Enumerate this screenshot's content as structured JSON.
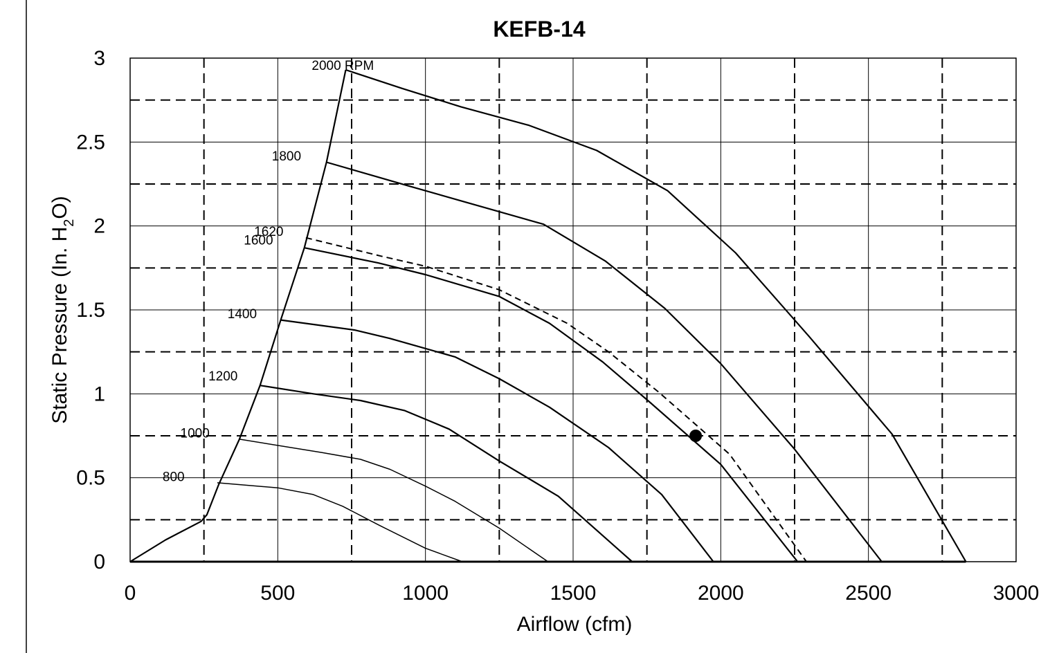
{
  "chart_data": {
    "type": "line",
    "title": "KEFB-14",
    "xlabel": "Airflow (cfm)",
    "ylabel_main": "Static Pressure (In. H",
    "ylabel_sub": "2",
    "ylabel_end": "O)",
    "xlim": [
      0,
      3000
    ],
    "ylim": [
      0,
      3
    ],
    "xticks": [
      0,
      500,
      1000,
      1500,
      2000,
      2500,
      3000
    ],
    "yticks": [
      0,
      0.5,
      1,
      1.5,
      2,
      2.5,
      3
    ],
    "xtick_labels": [
      "0",
      "500",
      "1000",
      "1500",
      "2000",
      "2500",
      "3000"
    ],
    "ytick_labels": [
      "0",
      "0.5",
      "1",
      "1.5",
      "2",
      "2.5",
      "3"
    ],
    "grid": {
      "solid_x": [
        500,
        1000,
        1500,
        2000,
        2500
      ],
      "dashed_x": [
        250,
        750,
        1250,
        1750,
        2250,
        2750
      ],
      "solid_y": [
        0.5,
        1,
        1.5,
        2,
        2.5
      ],
      "dashed_y": [
        0.25,
        0.75,
        1.25,
        1.75,
        2.25,
        2.75
      ]
    },
    "series": [
      {
        "name": "800",
        "line_width": 1.5,
        "label_at": [
          110,
          0.48
        ],
        "points": [
          [
            295,
            0.47
          ],
          [
            500,
            0.44
          ],
          [
            620,
            0.4
          ],
          [
            720,
            0.33
          ],
          [
            840,
            0.22
          ],
          [
            1000,
            0.08
          ],
          [
            1125,
            0.0
          ]
        ]
      },
      {
        "name": "1000",
        "line_width": 1.5,
        "label_at": [
          170,
          0.74
        ],
        "points": [
          [
            370,
            0.73
          ],
          [
            650,
            0.65
          ],
          [
            780,
            0.61
          ],
          [
            880,
            0.55
          ],
          [
            1000,
            0.45
          ],
          [
            1100,
            0.36
          ],
          [
            1250,
            0.2
          ],
          [
            1415,
            0.0
          ]
        ]
      },
      {
        "name": "1200",
        "line_width": 2.2,
        "label_at": [
          265,
          1.08
        ],
        "points": [
          [
            440,
            1.05
          ],
          [
            620,
            1.0
          ],
          [
            780,
            0.96
          ],
          [
            930,
            0.9
          ],
          [
            1080,
            0.79
          ],
          [
            1250,
            0.6
          ],
          [
            1450,
            0.39
          ],
          [
            1700,
            0.0
          ]
        ]
      },
      {
        "name": "1400",
        "line_width": 2.2,
        "label_at": [
          330,
          1.45
        ],
        "points": [
          [
            510,
            1.44
          ],
          [
            760,
            1.38
          ],
          [
            880,
            1.33
          ],
          [
            1100,
            1.22
          ],
          [
            1250,
            1.09
          ],
          [
            1420,
            0.92
          ],
          [
            1620,
            0.68
          ],
          [
            1800,
            0.4
          ],
          [
            1975,
            0.0
          ]
        ]
      },
      {
        "name": "1600",
        "line_width": 2.2,
        "label_at": [
          385,
          1.89
        ],
        "points": [
          [
            590,
            1.87
          ],
          [
            840,
            1.78
          ],
          [
            1000,
            1.71
          ],
          [
            1250,
            1.58
          ],
          [
            1420,
            1.42
          ],
          [
            1600,
            1.19
          ],
          [
            1760,
            0.95
          ],
          [
            2000,
            0.58
          ],
          [
            2260,
            0.0
          ]
        ]
      },
      {
        "name": "1620",
        "line_width": 2.0,
        "dashed": true,
        "label_at": [
          420,
          1.94
        ],
        "points": [
          [
            595,
            1.93
          ],
          [
            850,
            1.82
          ],
          [
            1000,
            1.76
          ],
          [
            1250,
            1.62
          ],
          [
            1480,
            1.42
          ],
          [
            1620,
            1.25
          ],
          [
            1790,
            1.01
          ],
          [
            2030,
            0.64
          ],
          [
            2290,
            0.0
          ]
        ]
      },
      {
        "name": "1800",
        "line_width": 2.2,
        "label_at": [
          480,
          2.39
        ],
        "points": [
          [
            665,
            2.38
          ],
          [
            940,
            2.24
          ],
          [
            1120,
            2.15
          ],
          [
            1400,
            2.01
          ],
          [
            1610,
            1.79
          ],
          [
            1810,
            1.51
          ],
          [
            2000,
            1.18
          ],
          [
            2250,
            0.67
          ],
          [
            2545,
            0.0
          ]
        ]
      },
      {
        "name": "2000 RPM",
        "line_width": 2.2,
        "label_at": [
          615,
          2.93
        ],
        "points": [
          [
            730,
            2.93
          ],
          [
            920,
            2.82
          ],
          [
            1120,
            2.71
          ],
          [
            1350,
            2.6
          ],
          [
            1580,
            2.45
          ],
          [
            1820,
            2.21
          ],
          [
            2050,
            1.84
          ],
          [
            2300,
            1.34
          ],
          [
            2580,
            0.76
          ],
          [
            2830,
            0.0
          ]
        ]
      }
    ],
    "system_curve": {
      "points": [
        [
          0,
          0.0
        ],
        [
          120,
          0.13
        ],
        [
          240,
          0.24
        ],
        [
          260,
          0.28
        ],
        [
          300,
          0.46
        ],
        [
          370,
          0.73
        ],
        [
          440,
          1.05
        ],
        [
          510,
          1.44
        ],
        [
          590,
          1.87
        ],
        [
          665,
          2.38
        ],
        [
          730,
          2.93
        ]
      ]
    },
    "marker": {
      "x": 1915,
      "y": 0.75
    },
    "legend": "none"
  }
}
